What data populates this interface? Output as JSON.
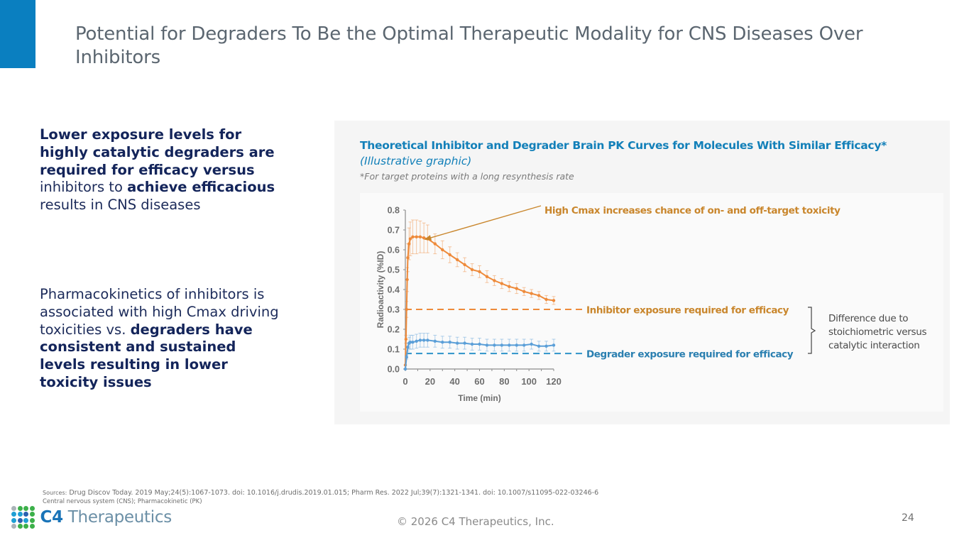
{
  "slide": {
    "title": "Potential for Degraders To Be the Optimal Therapeutic Modality for CNS Diseases Over Inhibitors",
    "accent_color": "#0a7fc0",
    "page_number": "24",
    "copyright": "© 2026 C4 Therapeutics, Inc."
  },
  "left_text": {
    "para1": {
      "b1": "Lower exposure levels for highly catalytic degraders are required for efficacy versus",
      "t1": " inhibitors to ",
      "b2": "achieve efficacious",
      "t2": " results in CNS diseases"
    },
    "para2": {
      "t1": "Pharmacokinetics of inhibitors is associated with high Cmax driving toxicities vs. ",
      "b1": "degraders have consistent and sustained levels resulting in lower toxicity issues"
    }
  },
  "footer": {
    "sources_label": "Sources:",
    "sources_text": " Drug Discov Today. 2019 May;24(5):1067-1073. doi: 10.1016/j.drudis.2019.01.015; Pharm Res. 2022 Jul;39(7):1321-1341. doi: 10.1007/s11095-022-03246-6",
    "abbreviations": "Central nervous system (CNS); Pharmacokinetic (PK)",
    "logo_bold": "C4",
    "logo_rest": " Therapeutics"
  },
  "chart_data": {
    "type": "line",
    "title": "Theoretical Inhibitor and Degrader Brain PK Curves for Molecules With Similar Efficacy*",
    "subtitle": "(Illustrative graphic)",
    "note": "*For target proteins with a long resynthesis rate",
    "xlabel": "Time (min)",
    "ylabel": "Radioactivity (%ID)",
    "xlim": [
      0,
      120
    ],
    "ylim": [
      0,
      0.8
    ],
    "xticks": [
      "0",
      "20",
      "40",
      "60",
      "80",
      "100",
      "120"
    ],
    "yticks": [
      "0.0",
      "0.1",
      "0.2",
      "0.3",
      "0.4",
      "0.5",
      "0.6",
      "0.7",
      "0.8"
    ],
    "grid": false,
    "error_bars": true,
    "colors": {
      "inhibitor": "#ee8a3a",
      "degrader": "#5b9fd8",
      "annotation": "#c9862c",
      "degrader_text": "#2a7fb0",
      "axis": "#8c8c8c"
    },
    "series": [
      {
        "name": "Inhibitor",
        "x": [
          0,
          0.5,
          1,
          1.5,
          2,
          3,
          4,
          6,
          9,
          12,
          15,
          18,
          24,
          30,
          36,
          42,
          48,
          54,
          60,
          66,
          72,
          78,
          84,
          90,
          96,
          102,
          108,
          114,
          120
        ],
        "y": [
          0.02,
          0.15,
          0.3,
          0.45,
          0.56,
          0.63,
          0.655,
          0.665,
          0.665,
          0.665,
          0.66,
          0.655,
          0.63,
          0.6,
          0.575,
          0.55,
          0.525,
          0.5,
          0.49,
          0.465,
          0.445,
          0.43,
          0.415,
          0.405,
          0.39,
          0.38,
          0.37,
          0.35,
          0.345
        ],
        "err": [
          0,
          0.02,
          0.04,
          0.06,
          0.07,
          0.08,
          0.085,
          0.085,
          0.085,
          0.08,
          0.075,
          0.07,
          0.05,
          0.045,
          0.04,
          0.035,
          0.035,
          0.03,
          0.03,
          0.03,
          0.025,
          0.025,
          0.025,
          0.025,
          0.02,
          0.02,
          0.02,
          0.02,
          0.02
        ]
      },
      {
        "name": "Degrader",
        "x": [
          0,
          1,
          2,
          3,
          4,
          6,
          9,
          12,
          15,
          18,
          24,
          30,
          36,
          42,
          48,
          54,
          60,
          66,
          72,
          78,
          84,
          90,
          96,
          102,
          108,
          114,
          120
        ],
        "y": [
          0,
          0.06,
          0.11,
          0.13,
          0.135,
          0.135,
          0.14,
          0.145,
          0.145,
          0.145,
          0.14,
          0.135,
          0.135,
          0.13,
          0.13,
          0.125,
          0.125,
          0.12,
          0.12,
          0.12,
          0.12,
          0.12,
          0.12,
          0.125,
          0.115,
          0.115,
          0.12
        ],
        "err": [
          0,
          0.01,
          0.02,
          0.03,
          0.035,
          0.035,
          0.035,
          0.035,
          0.035,
          0.035,
          0.03,
          0.03,
          0.03,
          0.03,
          0.03,
          0.03,
          0.03,
          0.03,
          0.03,
          0.03,
          0.03,
          0.03,
          0.03,
          0.025,
          0.025,
          0.025,
          0.03
        ]
      }
    ],
    "thresholds": [
      {
        "name": "Inhibitor exposure required for efficacy",
        "y": 0.3,
        "series": "inhibitor"
      },
      {
        "name": "Degrader exposure required for efficacy",
        "y": 0.078,
        "series": "degrader"
      }
    ],
    "annotations": {
      "cmax": "High Cmax increases chance of on- and off-target toxicity",
      "cmax_target": {
        "x": 14,
        "y": 0.66
      },
      "bracket_line1": "Difference due to",
      "bracket_line2": "stoichiometric versus",
      "bracket_line3": "catalytic interaction"
    }
  }
}
